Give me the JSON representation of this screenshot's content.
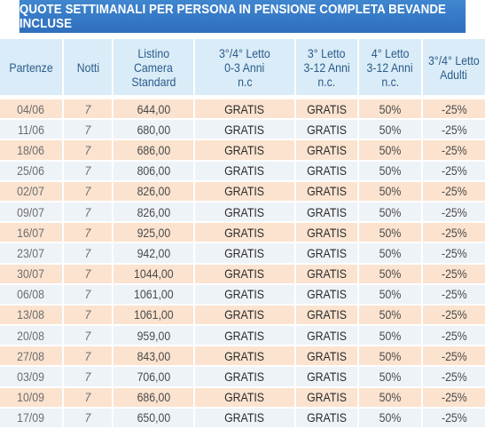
{
  "title": "QUOTE SETTIMANALI PER PERSONA IN PENSIONE COMPLETA BEVANDE INCLUSE",
  "colors": {
    "title_bg": "#3579c6",
    "header_bg": "#d9ecf7",
    "header_text": "#2c5b8a",
    "row_odd": "#fbe3cf",
    "row_even": "#eef3f8"
  },
  "headers": {
    "partenze": "Partenze",
    "notti": "Notti",
    "listino": [
      "Listino",
      "Camera",
      "Standard"
    ],
    "letto34_0_3": [
      "3°/4° Letto",
      "0-3 Anni",
      "n.c"
    ],
    "letto3_3_12": [
      "3° Letto",
      "3-12 Anni",
      "n.c."
    ],
    "letto4_3_12": [
      "4° Letto",
      "3-12 Anni",
      "n.c."
    ],
    "letto34_adulti": [
      "3°/4° Letto",
      "Adulti"
    ]
  },
  "rows": [
    {
      "partenze": "04/06",
      "notti": "7",
      "listino": "644,00",
      "l34_03": "GRATIS",
      "l3": "GRATIS",
      "l4": "50%",
      "adulti": "-25%"
    },
    {
      "partenze": "11/06",
      "notti": "7",
      "listino": "680,00",
      "l34_03": "GRATIS",
      "l3": "GRATIS",
      "l4": "50%",
      "adulti": "-25%"
    },
    {
      "partenze": "18/06",
      "notti": "7",
      "listino": "686,00",
      "l34_03": "GRATIS",
      "l3": "GRATIS",
      "l4": "50%",
      "adulti": "-25%"
    },
    {
      "partenze": "25/06",
      "notti": "7",
      "listino": "806,00",
      "l34_03": "GRATIS",
      "l3": "GRATIS",
      "l4": "50%",
      "adulti": "-25%"
    },
    {
      "partenze": "02/07",
      "notti": "7",
      "listino": "826,00",
      "l34_03": "GRATIS",
      "l3": "GRATIS",
      "l4": "50%",
      "adulti": "-25%"
    },
    {
      "partenze": "09/07",
      "notti": "7",
      "listino": "826,00",
      "l34_03": "GRATIS",
      "l3": "GRATIS",
      "l4": "50%",
      "adulti": "-25%"
    },
    {
      "partenze": "16/07",
      "notti": "7",
      "listino": "925,00",
      "l34_03": "GRATIS",
      "l3": "GRATIS",
      "l4": "50%",
      "adulti": "-25%"
    },
    {
      "partenze": "23/07",
      "notti": "7",
      "listino": "942,00",
      "l34_03": "GRATIS",
      "l3": "GRATIS",
      "l4": "50%",
      "adulti": "-25%"
    },
    {
      "partenze": "30/07",
      "notti": "7",
      "listino": "1044,00",
      "l34_03": "GRATIS",
      "l3": "GRATIS",
      "l4": "50%",
      "adulti": "-25%"
    },
    {
      "partenze": "06/08",
      "notti": "7",
      "listino": "1061,00",
      "l34_03": "GRATIS",
      "l3": "GRATIS",
      "l4": "50%",
      "adulti": "-25%"
    },
    {
      "partenze": "13/08",
      "notti": "7",
      "listino": "1061,00",
      "l34_03": "GRATIS",
      "l3": "GRATIS",
      "l4": "50%",
      "adulti": "-25%"
    },
    {
      "partenze": "20/08",
      "notti": "7",
      "listino": "959,00",
      "l34_03": "GRATIS",
      "l3": "GRATIS",
      "l4": "50%",
      "adulti": "-25%"
    },
    {
      "partenze": "27/08",
      "notti": "7",
      "listino": "843,00",
      "l34_03": "GRATIS",
      "l3": "GRATIS",
      "l4": "50%",
      "adulti": "-25%"
    },
    {
      "partenze": "03/09",
      "notti": "7",
      "listino": "706,00",
      "l34_03": "GRATIS",
      "l3": "GRATIS",
      "l4": "50%",
      "adulti": "-25%"
    },
    {
      "partenze": "10/09",
      "notti": "7",
      "listino": "686,00",
      "l34_03": "GRATIS",
      "l3": "GRATIS",
      "l4": "50%",
      "adulti": "-25%"
    },
    {
      "partenze": "17/09",
      "notti": "7",
      "listino": "650,00",
      "l34_03": "GRATIS",
      "l3": "GRATIS",
      "l4": "50%",
      "adulti": "-25%"
    }
  ]
}
